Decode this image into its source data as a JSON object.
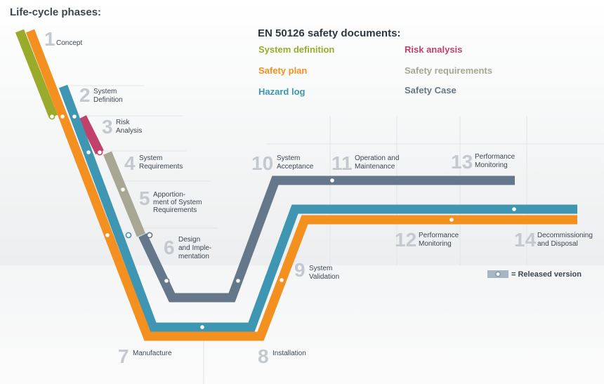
{
  "title": "Life-cycle phases:",
  "documents": {
    "heading": "EN 50126 safety documents:",
    "items": [
      {
        "label": "System definition",
        "color": "#9aaa2a"
      },
      {
        "label": "Risk analysis",
        "color": "#c0416a"
      },
      {
        "label": "Safety plan",
        "color": "#f39020"
      },
      {
        "label": "Safety requirements",
        "color": "#a7a793"
      },
      {
        "label": "Hazard log",
        "color": "#3f96b2"
      },
      {
        "label": "Safety Case",
        "color": "#65778a"
      }
    ]
  },
  "phases": [
    {
      "number": "1",
      "label": [
        "Concept"
      ]
    },
    {
      "number": "2",
      "label": [
        "System",
        "Definition"
      ]
    },
    {
      "number": "3",
      "label": [
        "Risk",
        "Analysis"
      ]
    },
    {
      "number": "4",
      "label": [
        "System",
        "Requirements"
      ]
    },
    {
      "number": "5",
      "label": [
        "Apportion-",
        "ment of System",
        "Requirements"
      ]
    },
    {
      "number": "6",
      "label": [
        "Design",
        "and Imple-",
        "mentation"
      ]
    },
    {
      "number": "7",
      "label": [
        "Manufacture"
      ]
    },
    {
      "number": "8",
      "label": [
        "Installation"
      ]
    },
    {
      "number": "9",
      "label": [
        "System",
        "Validation"
      ]
    },
    {
      "number": "10",
      "label": [
        "System",
        "Acceptance"
      ]
    },
    {
      "number": "11",
      "label": [
        "Operation and",
        "Maintenance"
      ]
    },
    {
      "number": "12",
      "label": [
        "Performance",
        "Monitoring"
      ]
    },
    {
      "number": "13",
      "label": [
        "Performance",
        "Monitoring"
      ]
    },
    {
      "number": "14",
      "label": [
        "Decommissioning",
        "and Disposal"
      ]
    }
  ],
  "legend": {
    "released_label": "= Released version"
  }
}
